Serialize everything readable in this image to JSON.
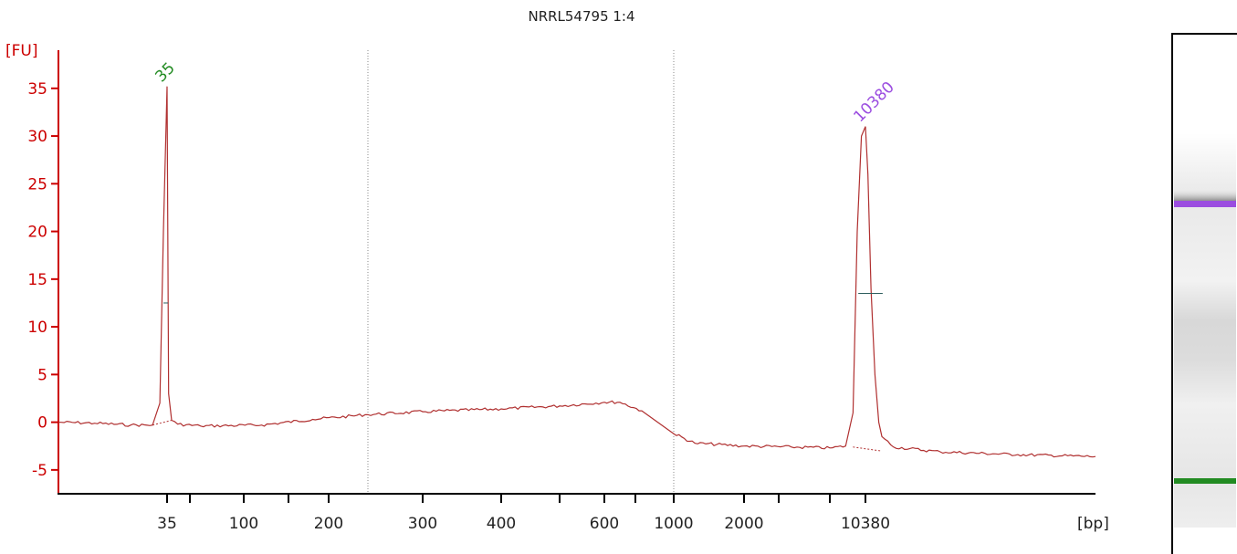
{
  "chart_data": {
    "type": "line",
    "title": "NRRL54795 1:4",
    "ylabel": "[FU]",
    "xlabel": "[bp]",
    "ylim": [
      -7.5,
      39
    ],
    "y_ticks": [
      -5,
      0,
      5,
      10,
      15,
      20,
      25,
      30,
      35
    ],
    "y_tick_labels": [
      "-5",
      "0",
      "5",
      "10",
      "15",
      "20",
      "25",
      "30",
      "35"
    ],
    "x_ticks": [
      {
        "value": 35,
        "label": "35"
      },
      {
        "value": 50,
        "label": ""
      },
      {
        "value": 100,
        "label": "100"
      },
      {
        "value": 150,
        "label": ""
      },
      {
        "value": 200,
        "label": "200"
      },
      {
        "value": 300,
        "label": "300"
      },
      {
        "value": 400,
        "label": "400"
      },
      {
        "value": 500,
        "label": ""
      },
      {
        "value": 600,
        "label": "600"
      },
      {
        "value": 700,
        "label": ""
      },
      {
        "value": 1000,
        "label": "1000"
      },
      {
        "value": 2000,
        "label": "2000"
      },
      {
        "value": 3000,
        "label": ""
      },
      {
        "value": 7000,
        "label": ""
      },
      {
        "value": 10380,
        "label": "10380"
      }
    ],
    "vertical_markers": [
      240,
      1000
    ],
    "peaks": [
      {
        "bp": 35,
        "fu": 35.2,
        "label": "35",
        "color": "#228B22"
      },
      {
        "bp": 10380,
        "fu": 31.0,
        "label": "10380",
        "color": "#9B4DE0"
      }
    ],
    "trace_color": "#B03030",
    "axis_color": "#CC0000",
    "trace_points": [
      {
        "bp": 20,
        "fu": 0.0
      },
      {
        "bp": 25,
        "fu": -0.1
      },
      {
        "bp": 30,
        "fu": -0.3
      },
      {
        "bp": 33,
        "fu": -0.3
      },
      {
        "bp": 34,
        "fu": 2.0
      },
      {
        "bp": 34.5,
        "fu": 20.0
      },
      {
        "bp": 35,
        "fu": 35.2
      },
      {
        "bp": 35.5,
        "fu": 20.0
      },
      {
        "bp": 36,
        "fu": 3.0
      },
      {
        "bp": 38,
        "fu": 0.2
      },
      {
        "bp": 42,
        "fu": -0.2
      },
      {
        "bp": 60,
        "fu": -0.4
      },
      {
        "bp": 120,
        "fu": -0.3
      },
      {
        "bp": 180,
        "fu": 0.3
      },
      {
        "bp": 240,
        "fu": 0.8
      },
      {
        "bp": 300,
        "fu": 1.1
      },
      {
        "bp": 400,
        "fu": 1.4
      },
      {
        "bp": 500,
        "fu": 1.7
      },
      {
        "bp": 600,
        "fu": 2.1
      },
      {
        "bp": 650,
        "fu": 2.1
      },
      {
        "bp": 750,
        "fu": 1.2
      },
      {
        "bp": 1000,
        "fu": -1.2
      },
      {
        "bp": 1300,
        "fu": -2.2
      },
      {
        "bp": 2000,
        "fu": -2.5
      },
      {
        "bp": 4000,
        "fu": -2.6
      },
      {
        "bp": 7000,
        "fu": -2.7
      },
      {
        "bp": 8500,
        "fu": -2.5
      },
      {
        "bp": 9200,
        "fu": 1.0
      },
      {
        "bp": 9600,
        "fu": 20.0
      },
      {
        "bp": 10000,
        "fu": 30.0
      },
      {
        "bp": 10380,
        "fu": 31.0
      },
      {
        "bp": 10700,
        "fu": 26.0
      },
      {
        "bp": 11100,
        "fu": 14.0
      },
      {
        "bp": 11600,
        "fu": 5.0
      },
      {
        "bp": 12100,
        "fu": 0.0
      },
      {
        "bp": 12500,
        "fu": -1.5
      },
      {
        "bp": 14000,
        "fu": -2.6
      },
      {
        "bp": 20000,
        "fu": -3.1
      },
      {
        "bp": 30000,
        "fu": -3.4
      },
      {
        "bp": 40000,
        "fu": -3.6
      }
    ],
    "baseline_segments": [
      [
        {
          "bp": 33,
          "fu": -0.3
        },
        {
          "bp": 38,
          "fu": 0.2
        }
      ],
      [
        {
          "bp": 9200,
          "fu": -2.6
        },
        {
          "bp": 12300,
          "fu": -3.0
        }
      ]
    ],
    "half_height_marks": [
      {
        "bp_from": 34.5,
        "bp_to": 35.7,
        "fu": 12.5
      },
      {
        "bp_from": 9700,
        "bp_to": 12600,
        "fu": 13.5
      }
    ]
  },
  "gel": {
    "band_colors": [
      "#9B4DE0",
      "#228B22"
    ]
  }
}
